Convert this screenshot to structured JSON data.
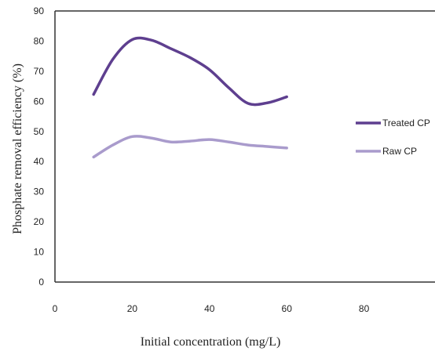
{
  "chart_data": {
    "type": "line",
    "title": "",
    "xlabel": "Initial concentration (mg/L)",
    "ylabel": "Phosphate removal efficiency (%)",
    "xlim": [
      0,
      100
    ],
    "ylim": [
      0,
      90
    ],
    "x_ticks": [
      0,
      20,
      40,
      60,
      80
    ],
    "y_ticks": [
      0,
      10,
      20,
      30,
      40,
      50,
      60,
      70,
      80,
      90
    ],
    "grid": false,
    "legend_position": "right",
    "series": [
      {
        "name": "Treated CP",
        "color": "#5e3f8f",
        "x": [
          10,
          15,
          20,
          25,
          30,
          35,
          40,
          45,
          50,
          55,
          60
        ],
        "y": [
          62.3,
          74,
          80.5,
          80.3,
          77.5,
          74.5,
          70.5,
          64.5,
          59.3,
          59.5,
          61.5
        ]
      },
      {
        "name": "Raw CP",
        "color": "#a99bcc",
        "x": [
          10,
          15,
          20,
          25,
          30,
          35,
          40,
          45,
          50,
          55,
          60
        ],
        "y": [
          41.5,
          45.5,
          48.3,
          47.8,
          46.5,
          46.8,
          47.3,
          46.5,
          45.5,
          45,
          44.5
        ]
      }
    ]
  }
}
